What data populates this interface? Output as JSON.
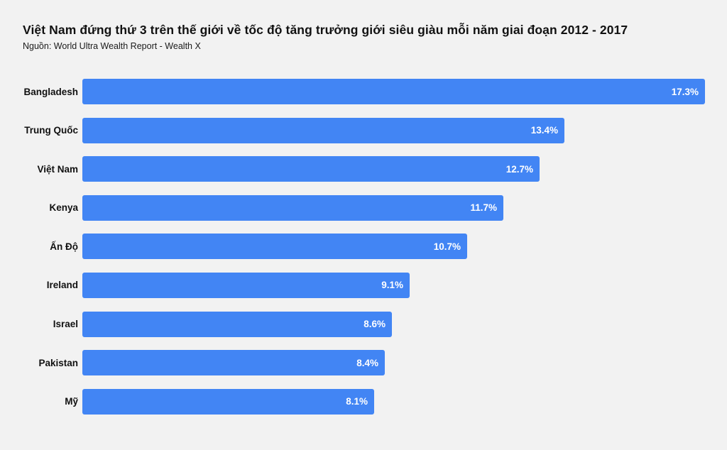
{
  "page": {
    "background_color": "#f2f2f2",
    "title": "Việt Nam đứng thứ 3 trên thế giới về tốc độ tăng trưởng giới siêu giàu mỗi năm giai đoạn 2012 - 2017",
    "source": "Nguồn: World Ultra Wealth Report - Wealth X"
  },
  "chart_data": {
    "type": "bar",
    "orientation": "horizontal",
    "title": "Việt Nam đứng thứ 3 trên thế giới về tốc độ tăng trưởng giới siêu giàu mỗi năm giai đoạn 2012 - 2017",
    "subtitle": "Nguồn: World Ultra Wealth Report - Wealth X",
    "categories": [
      "Bangladesh",
      "Trung Quốc",
      "Việt Nam",
      "Kenya",
      "Ấn Độ",
      "Ireland",
      "Israel",
      "Pakistan",
      "Mỹ"
    ],
    "values": [
      17.3,
      13.4,
      12.7,
      11.7,
      10.7,
      9.1,
      8.6,
      8.4,
      8.1
    ],
    "value_labels": [
      "17.3%",
      "13.4%",
      "12.7%",
      "11.7%",
      "10.7%",
      "9.1%",
      "8.6%",
      "8.4%",
      "8.1%"
    ],
    "xlabel": "",
    "ylabel": "",
    "xlim": [
      0,
      17.9
    ],
    "grid": false,
    "legend": false,
    "bar_color": "#4285f4",
    "value_label_color": "#ffffff",
    "category_label_color": "#111111"
  }
}
